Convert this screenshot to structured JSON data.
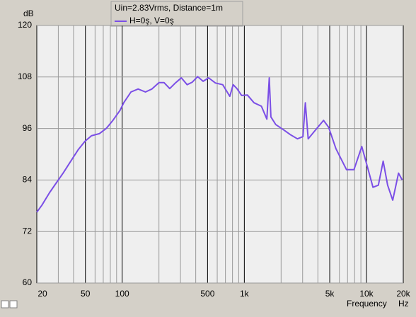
{
  "chart_data": {
    "type": "line",
    "legend_title": "Uin=2.83Vrms, Distance=1m",
    "y_label": "dB",
    "x_label": "Frequency",
    "x_unit": "Hz",
    "x_scale": "log",
    "grid": true,
    "x": [
      20,
      22,
      25.5,
      29,
      33,
      38,
      43.5,
      49.5,
      56,
      65,
      74,
      84,
      96,
      103,
      118,
      135,
      155,
      175,
      200,
      220,
      245,
      270,
      305,
      340,
      375,
      415,
      460,
      510,
      580,
      665,
      760,
      810,
      870,
      950,
      1060,
      1200,
      1380,
      1530,
      1600,
      1650,
      1810,
      2070,
      2370,
      2720,
      3020,
      3160,
      3330,
      3760,
      4450,
      4900,
      5620,
      6860,
      7900,
      9150,
      10150,
      11300,
      12500,
      13700,
      14900,
      16400,
      18300,
      19600
    ],
    "series": [
      {
        "name": "H=0ş, V=0ş",
        "color": "#7b4fe6",
        "values": [
          76.5,
          78.1,
          81.1,
          83.4,
          85.7,
          88.4,
          91.0,
          93.0,
          94.3,
          94.8,
          96.0,
          97.9,
          100.2,
          102.0,
          104.5,
          105.2,
          104.5,
          105.2,
          106.7,
          106.7,
          105.3,
          106.5,
          107.8,
          106.2,
          106.8,
          108.1,
          107.0,
          107.8,
          106.6,
          106.2,
          103.5,
          106.2,
          105.3,
          103.7,
          103.8,
          102.0,
          101.2,
          98.2,
          107.8,
          98.7,
          96.9,
          95.8,
          94.6,
          93.6,
          94.1,
          102.0,
          93.6,
          95.4,
          97.9,
          96.3,
          91.3,
          86.4,
          86.4,
          91.8,
          87.2,
          82.3,
          82.8,
          88.4,
          82.8,
          79.3,
          85.6,
          84.0
        ]
      }
    ],
    "xlim": [
      20,
      20000
    ],
    "xticks": [
      20,
      50,
      100,
      500,
      {
        "value": 1000,
        "label": "1k"
      },
      {
        "value": 5000,
        "label": "5k"
      },
      {
        "value": 10000,
        "label": "10k"
      },
      {
        "value": 20000,
        "label": "20k"
      }
    ],
    "xgrid_minor": [
      30,
      40,
      60,
      70,
      80,
      90,
      200,
      300,
      400,
      600,
      700,
      800,
      900,
      2000,
      3000,
      4000,
      6000,
      7000,
      8000,
      9000
    ],
    "ylim": [
      60,
      120
    ],
    "yticks": [
      60,
      72,
      84,
      96,
      108,
      120
    ]
  }
}
